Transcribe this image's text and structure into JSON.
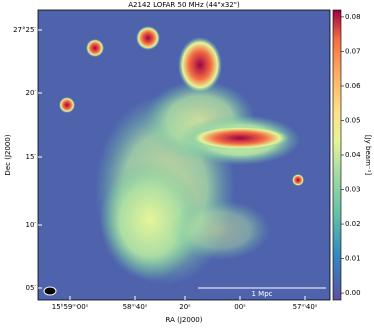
{
  "title": "A2142 LOFAR 50 MHz (44\"x32\")",
  "x_axis": {
    "label": "RA (J2000)",
    "ticks": [
      "15ʰ59ᵐ00ˢ",
      "58ᵐ40ˢ",
      "20ˢ",
      "00ˢ",
      "57ᵐ40ˢ"
    ]
  },
  "y_axis": {
    "label": "Dec (J2000)",
    "ticks": [
      "27°25′",
      "20′",
      "15′",
      "10′",
      "05′"
    ]
  },
  "colorbar": {
    "label": "[Jy beam⁻¹]",
    "range": [
      -0.002,
      0.082
    ],
    "ticks": [
      {
        "value": 0,
        "label": "0.00"
      },
      {
        "value": 0.01,
        "label": "0.01"
      },
      {
        "value": 0.02,
        "label": "0.02"
      },
      {
        "value": 0.03,
        "label": "0.03"
      },
      {
        "value": 0.04,
        "label": "0.04"
      },
      {
        "value": 0.05,
        "label": "0.05"
      },
      {
        "value": 0.06,
        "label": "0.06"
      },
      {
        "value": 0.07,
        "label": "0.07"
      },
      {
        "value": 0.08,
        "label": "0.08"
      }
    ]
  },
  "scale_bar": "1 Mpc"
}
